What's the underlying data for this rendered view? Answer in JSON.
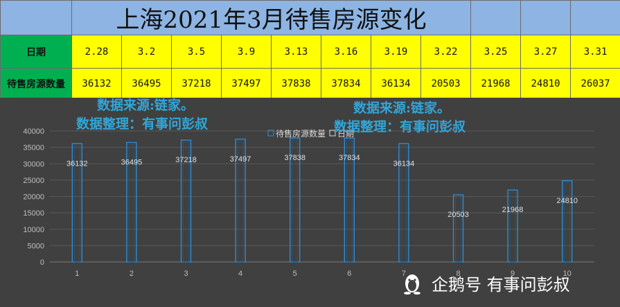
{
  "table": {
    "title": "上海2021年3月待售房源变化",
    "row_labels": {
      "date": "日期",
      "count": "待售房源数量"
    },
    "dates": [
      "2.28",
      "3.2",
      "3.5",
      "3.9",
      "3.13",
      "3.16",
      "3.19",
      "3.22",
      "3.25",
      "3.27",
      "3.31"
    ],
    "counts": [
      "36132",
      "36495",
      "37218",
      "37497",
      "37838",
      "37834",
      "36134",
      "20503",
      "21968",
      "24810",
      "26037"
    ]
  },
  "watermark": {
    "line1": "数据来源:链家。",
    "line2": "数据整理：有事问彭叔"
  },
  "legend": {
    "series1": "待售房源数量",
    "series2": "日期"
  },
  "credit": {
    "text": "企鹅号 有事问彭叔"
  },
  "colors": {
    "header_blue": "#8db4e2",
    "data_yellow": "#ffff00",
    "row_head_green": "#00b050",
    "chart_bg": "#404040",
    "bar_outline": "#2f8fd8",
    "watermark_blue": "#31a6d8"
  },
  "chart_data": {
    "type": "bar",
    "title": "",
    "xlabel": "",
    "ylabel": "",
    "categories": [
      "1",
      "2",
      "3",
      "4",
      "5",
      "6",
      "7",
      "8",
      "9",
      "10"
    ],
    "series": [
      {
        "name": "待售房源数量",
        "values": [
          36132,
          36495,
          37218,
          37497,
          37838,
          37834,
          36134,
          20503,
          21968,
          24810
        ]
      }
    ],
    "ylim": [
      0,
      40000
    ],
    "yticks": [
      0,
      5000,
      10000,
      15000,
      20000,
      25000,
      30000,
      35000,
      40000
    ],
    "grid": true,
    "legend_position": "top-center",
    "bar_style": "outline"
  }
}
